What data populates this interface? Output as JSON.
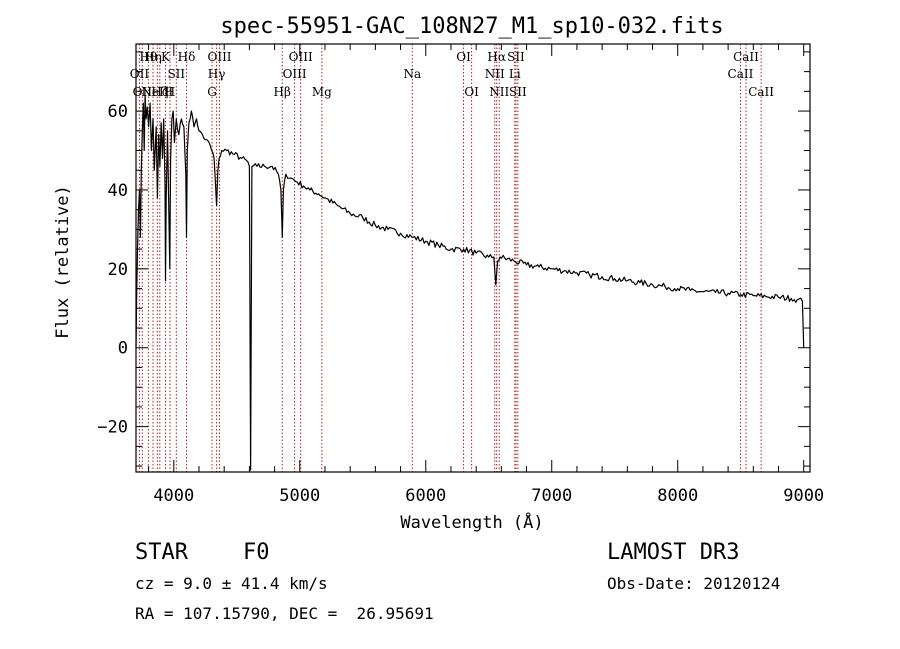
{
  "chart_data": {
    "type": "line",
    "title": "spec-55951-GAC_108N27_M1_sp10-032.fits",
    "xlabel": "Wavelength (Å)",
    "ylabel": "Flux (relative)",
    "xlim": [
      3700,
      9050
    ],
    "ylim": [
      -31.5,
      77
    ],
    "x_ticks": [
      4000,
      5000,
      6000,
      7000,
      8000,
      9000
    ],
    "x_tick_labels": [
      "4000",
      "5000",
      "6000",
      "7000",
      "8000",
      "9000"
    ],
    "y_ticks": [
      -20,
      0,
      20,
      40,
      60
    ],
    "y_tick_labels": [
      "−20",
      "0",
      "20",
      "40",
      "60"
    ],
    "grid": false,
    "series": [
      {
        "name": "spectrum",
        "color": "#000000",
        "x": [
          3700,
          3705,
          3712,
          3720,
          3728,
          3735,
          3742,
          3750,
          3758,
          3765,
          3772,
          3780,
          3790,
          3800,
          3812,
          3822,
          3835,
          3845,
          3860,
          3870,
          3880,
          3890,
          3900,
          3910,
          3920,
          3930,
          3934,
          3940,
          3950,
          3960,
          3968,
          3975,
          3985,
          3995,
          4005,
          4020,
          4040,
          4060,
          4080,
          4095,
          4101,
          4107,
          4120,
          4140,
          4160,
          4180,
          4200,
          4240,
          4280,
          4300,
          4320,
          4340,
          4350,
          4360,
          4380,
          4420,
          4480,
          4540,
          4590,
          4600,
          4610,
          4620,
          4660,
          4720,
          4780,
          4830,
          4850,
          4861,
          4870,
          4890,
          4930,
          4980,
          5030,
          5080,
          5150,
          5200,
          5300,
          5400,
          5500,
          5600,
          5700,
          5800,
          5900,
          6000,
          6100,
          6200,
          6300,
          6400,
          6500,
          6540,
          6556,
          6563,
          6570,
          6590,
          6700,
          6800,
          6900,
          7000,
          7100,
          7200,
          7300,
          7400,
          7500,
          7600,
          7700,
          7800,
          7900,
          8000,
          8100,
          8200,
          8300,
          8400,
          8500,
          8600,
          8700,
          8800,
          8900,
          8950,
          8990,
          8998,
          9000
        ],
        "y": [
          0,
          12,
          25,
          35,
          40,
          28,
          45,
          55,
          62,
          50,
          64,
          58,
          61,
          56,
          62,
          50,
          58,
          45,
          56,
          38,
          54,
          46,
          57,
          48,
          58,
          42,
          17,
          38,
          55,
          35,
          20,
          48,
          58,
          60,
          52,
          58,
          54,
          58,
          56,
          44,
          28,
          50,
          57,
          60,
          56,
          58,
          55,
          53,
          52,
          50,
          48,
          36,
          45,
          48,
          50,
          50,
          49,
          48,
          47,
          46,
          -31,
          46,
          46,
          46,
          46,
          44,
          40,
          28,
          40,
          44,
          43,
          42,
          41,
          40,
          39,
          38,
          36,
          34,
          33,
          31,
          30,
          29,
          28,
          27,
          26,
          25,
          25,
          24,
          23,
          23,
          16,
          19,
          22,
          23,
          22,
          21,
          20.5,
          20,
          19.5,
          19,
          18.5,
          18,
          17.5,
          17,
          16.5,
          16,
          15.5,
          15,
          14.5,
          14.2,
          14,
          13.8,
          13.5,
          13.2,
          13,
          12.8,
          12.5,
          12.2,
          11.8,
          3,
          0
        ]
      }
    ],
    "line_color": "#b22222",
    "lines": [
      {
        "x": 3727,
        "label": "OII",
        "row": 1
      },
      {
        "x": 3750,
        "label": "OII",
        "row": 2
      },
      {
        "x": 3798,
        "label": "Hθ",
        "row": 0
      },
      {
        "x": 3835,
        "label": "Hη",
        "row": 0
      },
      {
        "x": 3869,
        "label": "NeIII",
        "row": 2
      },
      {
        "x": 3889,
        "label": "Hζ",
        "row": 2
      },
      {
        "x": 3934,
        "label": "K",
        "row": 0
      },
      {
        "x": 3970,
        "label": "H",
        "row": 2
      },
      {
        "x": 4020,
        "label": "SII",
        "row": 1
      },
      {
        "x": 4101,
        "label": "Hδ",
        "row": 0
      },
      {
        "x": 4304,
        "label": "G",
        "row": 2
      },
      {
        "x": 4340,
        "label": "Hγ",
        "row": 1
      },
      {
        "x": 4363,
        "label": "OIII",
        "row": 0
      },
      {
        "x": 4861,
        "label": "Hβ",
        "row": 2
      },
      {
        "x": 4959,
        "label": "OIII",
        "row": 1
      },
      {
        "x": 5007,
        "label": "OIII",
        "row": 0
      },
      {
        "x": 5175,
        "label": "Mg",
        "row": 2
      },
      {
        "x": 5893,
        "label": "Na",
        "row": 1
      },
      {
        "x": 6300,
        "label": "OI",
        "row": 0
      },
      {
        "x": 6364,
        "label": "OI",
        "row": 2
      },
      {
        "x": 6548,
        "label": "NII",
        "row": 1
      },
      {
        "x": 6563,
        "label": "Hα",
        "row": 0
      },
      {
        "x": 6583,
        "label": "NII",
        "row": 2
      },
      {
        "x": 6707,
        "label": "Li",
        "row": 1
      },
      {
        "x": 6716,
        "label": "SII",
        "row": 0
      },
      {
        "x": 6731,
        "label": "SII",
        "row": 2
      },
      {
        "x": 8498,
        "label": "CaII",
        "row": 1
      },
      {
        "x": 8542,
        "label": "CaII",
        "row": 0
      },
      {
        "x": 8662,
        "label": "CaII",
        "row": 2
      }
    ]
  },
  "info": {
    "object_class": "STAR",
    "subclass": "F0",
    "survey": "LAMOST DR3",
    "redshift_text": "cz = 9.0 ± 41.4 km/s",
    "obs_date": "Obs-Date: 20120124",
    "coords": "RA = 107.15790, DEC =  26.95691"
  }
}
